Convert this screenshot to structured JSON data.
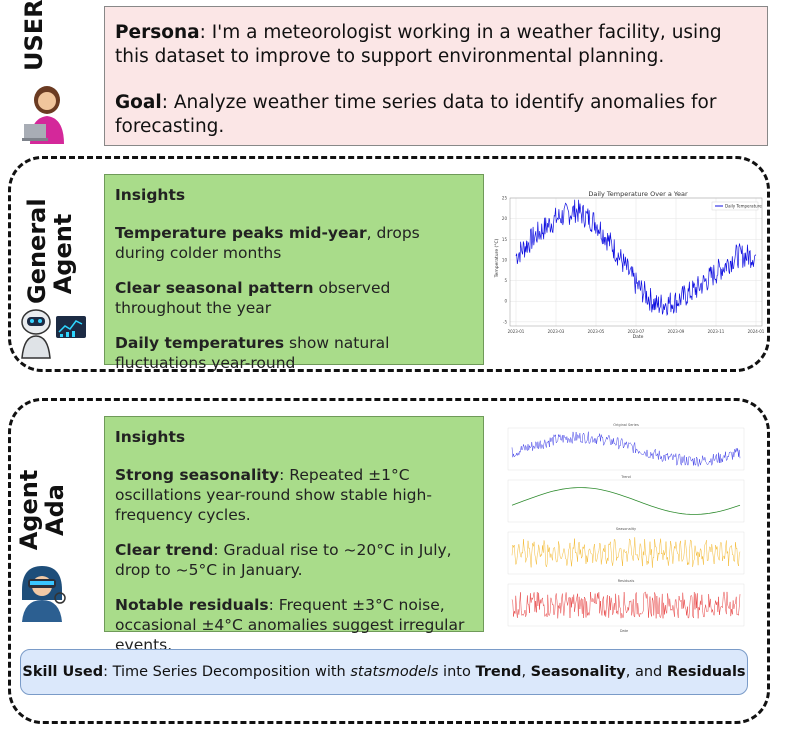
{
  "user_section": {
    "label": "USER",
    "persona_label": "Persona",
    "persona_text": ": I'm a meteorologist working in a weather facility, using this dataset to improve to support environmental planning.",
    "goal_label": "Goal",
    "goal_text": ": Analyze weather time series data to identify anomalies for forecasting."
  },
  "general_agent": {
    "label_line1": "General",
    "label_line2": "Agent",
    "insights_title": "Insights",
    "items": [
      {
        "bold": "Temperature peaks mid-year",
        "text": ", drops during colder months"
      },
      {
        "bold": "Clear seasonal pattern",
        "text": " observed throughout the year"
      },
      {
        "bold": "Daily temperatures",
        "text": " show natural fluctuations year-round"
      }
    ]
  },
  "agent_ada": {
    "label_line1": "Agent",
    "label_line2": "Ada",
    "insights_title": "Insights",
    "items": [
      {
        "bold": "Strong seasonality",
        "text": ": Repeated ±1°C oscillations year-round show stable high-frequency cycles."
      },
      {
        "bold": "Clear trend",
        "text": ": Gradual rise to ~20°C in July, drop to ~5°C in January."
      },
      {
        "bold": "Notable residuals",
        "text": ": Frequent ±3°C noise, occasional ±4°C anomalies suggest irregular events."
      }
    ]
  },
  "skill": {
    "label": "Skill Used",
    "pre": ": Time Series Decomposition with ",
    "lib": "statsmodels",
    "mid": " into ",
    "b1": "Trend",
    "sep1": ", ",
    "b2": "Seasonality",
    "sep2": ", and ",
    "b3": "Residuals"
  },
  "colors": {
    "persona_bg": "#fbe6e6",
    "insight_bg": "#a9dc8a",
    "skill_bg": "#dbe8fb",
    "line_blue": "#1010e0",
    "trend_green": "#2e8b2e",
    "seasonal_orange": "#f0a800",
    "resid_red": "#e01010"
  },
  "chart_data": [
    {
      "type": "line",
      "title": "Daily Temperature Over a Year",
      "xlabel": "Date",
      "ylabel": "Temperature (°C)",
      "legend": "Daily Temperature",
      "legend_position": "top-right",
      "x_ticks": [
        "2023-01",
        "2023-03",
        "2023-05",
        "2023-07",
        "2023-09",
        "2023-11",
        "2024-01"
      ],
      "y_ticks": [
        -5,
        0,
        5,
        10,
        15,
        20,
        25
      ],
      "ylim": [
        -6,
        25
      ],
      "grid": true,
      "series": [
        {
          "values_monthly_approx": [
            11,
            16,
            20,
            22,
            19,
            12,
            4,
            -1,
            0,
            3,
            7,
            11
          ]
        }
      ]
    },
    {
      "type": "line",
      "panels": [
        {
          "title": "Original Series",
          "color": "blue"
        },
        {
          "title": "Trend",
          "color": "green"
        },
        {
          "title": "Seasonality",
          "color": "orange"
        },
        {
          "title": "Residuals",
          "color": "red"
        }
      ],
      "xlabel": "Date"
    }
  ]
}
